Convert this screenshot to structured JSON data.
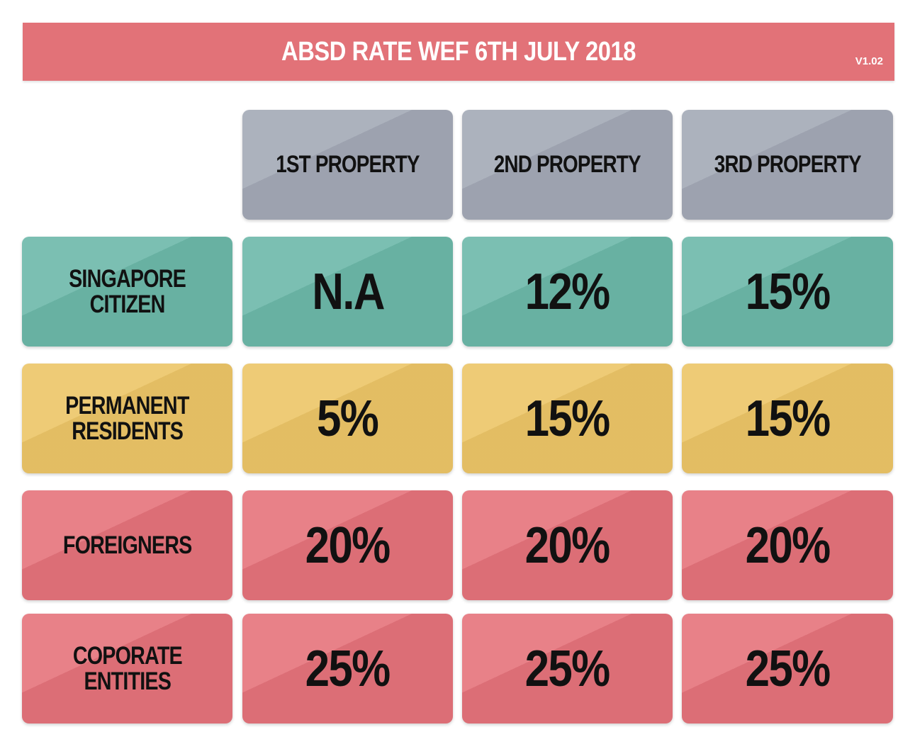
{
  "banner": {
    "title": "ABSD RATE WEF 6TH JULY 2018",
    "version": "V1.02",
    "color": "#e27278"
  },
  "table": {
    "columns": [
      "1ST PROPERTY",
      "2ND PROPERTY",
      "3RD PROPERTY"
    ],
    "rows": [
      {
        "label_line1": "SINGAPORE",
        "label_line2": "CITIZEN",
        "values": [
          "N.A",
          "12%",
          "15%"
        ],
        "color": "#6cb8a9"
      },
      {
        "label_line1": "PERMANENT",
        "label_line2": "RESIDENTS",
        "values": [
          "5%",
          "15%",
          "15%"
        ],
        "color": "#ecc567"
      },
      {
        "label_line1": "FOREIGNERS",
        "label_line2": "",
        "values": [
          "20%",
          "20%",
          "20%"
        ],
        "color": "#e5737b"
      },
      {
        "label_line1": "COPORATE",
        "label_line2": "ENTITIES",
        "values": [
          "25%",
          "25%",
          "25%"
        ],
        "color": "#e5737b"
      }
    ],
    "header_color": "#a3a9b6"
  }
}
